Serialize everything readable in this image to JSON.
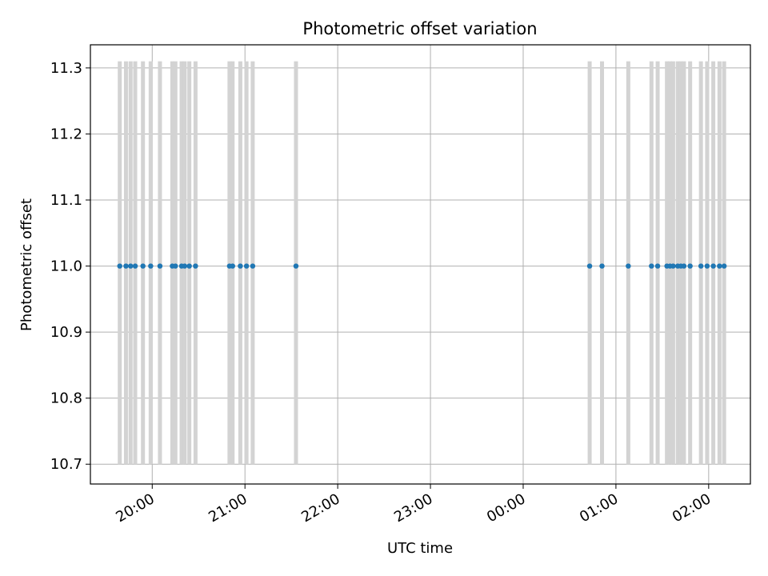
{
  "chart_data": {
    "type": "scatter",
    "title": "Photometric offset variation",
    "xlabel": "UTC time",
    "ylabel": "Photometric offset",
    "xlim": [
      "19:20",
      "02:27"
    ],
    "ylim": [
      10.67,
      11.335
    ],
    "grid": true,
    "x_ticks": [
      "20:00",
      "21:00",
      "22:00",
      "23:00",
      "00:00",
      "01:00",
      "02:00"
    ],
    "y_ticks": [
      "10.7",
      "10.8",
      "10.9",
      "11.0",
      "11.1",
      "11.2",
      "11.3"
    ],
    "observation_band": {
      "y_range": [
        10.7,
        11.31
      ],
      "color": "#d3d3d3"
    },
    "series": [
      {
        "color": "#1f77b4",
        "x": [
          "19:39",
          "19:43",
          "19:46",
          "19:49",
          "19:54",
          "19:59",
          "20:05",
          "20:13",
          "20:15",
          "20:19",
          "20:21",
          "20:24",
          "20:28",
          "20:50",
          "20:52",
          "20:57",
          "21:01",
          "21:05",
          "21:33",
          "00:43",
          "00:51",
          "01:08",
          "01:23",
          "01:27",
          "01:33",
          "01:35",
          "01:37",
          "01:40",
          "01:42",
          "01:44",
          "01:48",
          "01:55",
          "01:59",
          "02:03",
          "02:07",
          "02:10"
        ],
        "y": [
          11.0,
          11.0,
          11.0,
          11.0,
          11.0,
          11.0,
          11.0,
          11.0,
          11.0,
          11.0,
          11.0,
          11.0,
          11.0,
          11.0,
          11.0,
          11.0,
          11.0,
          11.0,
          11.0,
          11.0,
          11.0,
          11.0,
          11.0,
          11.0,
          11.0,
          11.0,
          11.0,
          11.0,
          11.0,
          11.0,
          11.0,
          11.0,
          11.0,
          11.0,
          11.0,
          11.0
        ]
      }
    ]
  }
}
